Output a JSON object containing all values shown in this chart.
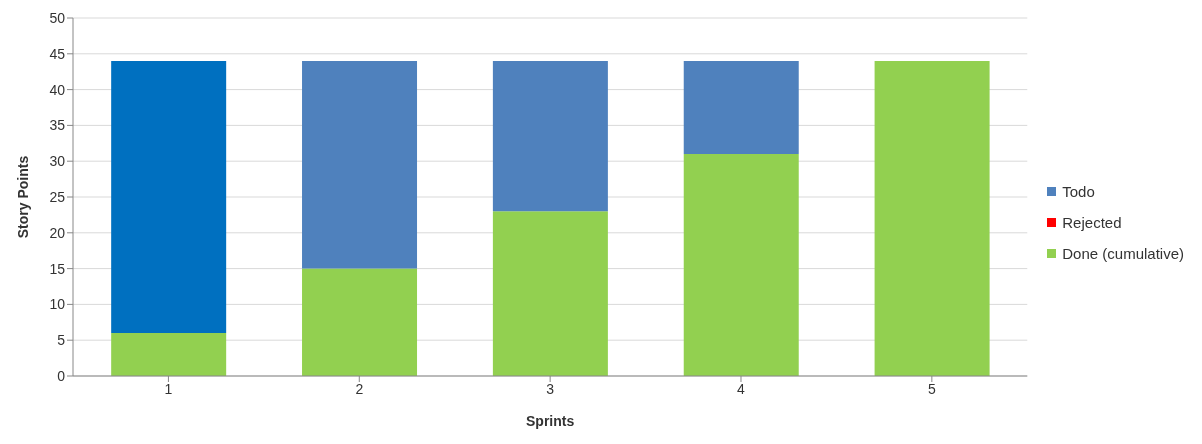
{
  "chart_data": {
    "type": "bar",
    "xlabel": "Sprints",
    "ylabel": "Story Points",
    "categories": [
      "1",
      "2",
      "3",
      "4",
      "5"
    ],
    "stacked": true,
    "series": [
      {
        "name": "Done (cumulative)",
        "color": "#92d050",
        "values": [
          6,
          15,
          23,
          31,
          44
        ]
      },
      {
        "name": "Rejected",
        "color": "#ff0000",
        "values": [
          0,
          0,
          0,
          0,
          0
        ]
      },
      {
        "name": "Todo",
        "color": "#4f81bd",
        "colors": [
          "#0070c0",
          "#4f81bd",
          "#4f81bd",
          "#4f81bd",
          "#4f81bd"
        ],
        "values": [
          38,
          29,
          21,
          13,
          0
        ]
      }
    ],
    "ylim": [
      0,
      50
    ],
    "yticks": [
      0,
      5,
      10,
      15,
      20,
      25,
      30,
      35,
      40,
      45,
      50
    ],
    "grid": "y",
    "legend": "right"
  }
}
